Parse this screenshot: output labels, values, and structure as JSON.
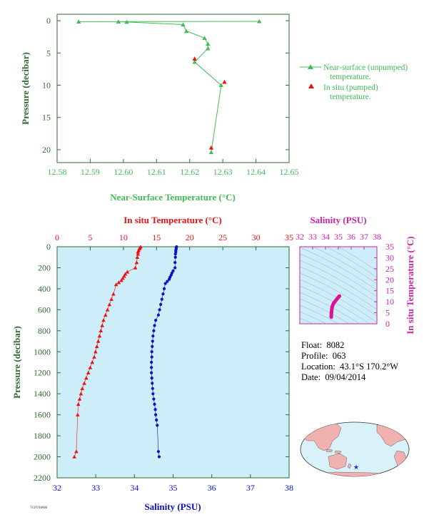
{
  "colors": {
    "green": "#44bb55",
    "axis_green": "#2f6a2f",
    "red": "#ee1111",
    "blue": "#0a10cc",
    "magenta": "#cc22aa",
    "panel_bg": "#cdeef8",
    "land": "#f2b1b1",
    "ocean": "#d9f1f9"
  },
  "info": {
    "float_label": "Float:",
    "float": "8082",
    "profile_label": "Profile:",
    "profile": "063",
    "location_label": "Location:",
    "location": "43.1°S  170.2°W",
    "date_label": "Date:",
    "date": "09/04/2014"
  },
  "tiny_code": "7419740A00",
  "chart_data": [
    {
      "type": "line",
      "xlabel": "Near-Surface Temperature (°C)",
      "ylabel": "Pressure (decibar)",
      "xlim": [
        12.58,
        12.65
      ],
      "ylim": [
        22,
        -1
      ],
      "xticks": [
        "12.58",
        "12.59",
        "12.60",
        "12.61",
        "12.62",
        "12.63",
        "12.64",
        "12.65"
      ],
      "yticks": [
        "0",
        "5",
        "10",
        "15",
        "20"
      ],
      "series": [
        {
          "name": "Near-surface (unpumped) temperature.",
          "marker": "triangle",
          "x": [
            12.641,
            12.5865,
            12.5985,
            12.601,
            12.618,
            12.619,
            12.6245,
            12.6255,
            12.6255,
            12.6215,
            12.6295,
            12.6265
          ],
          "y": [
            0.1,
            0.15,
            0.15,
            0.2,
            0.6,
            1.6,
            2.7,
            3.6,
            4.3,
            6.4,
            10.0,
            20.4
          ]
        },
        {
          "name": "In situ (pumped) temperature.",
          "marker": "triangle",
          "x": [
            12.6215,
            12.6305,
            12.6265
          ],
          "y": [
            5.9,
            9.5,
            19.7
          ]
        }
      ]
    },
    {
      "type": "scatter",
      "ylabel": "Pressure (decibar)",
      "ylim": [
        2200,
        0
      ],
      "yticks": [
        "0",
        "200",
        "400",
        "600",
        "800",
        "1000",
        "1200",
        "1400",
        "1600",
        "1800",
        "2000",
        "2200"
      ],
      "top_axis": {
        "label": "In situ Temperature (°C)",
        "lim": [
          0,
          35
        ],
        "ticks": [
          "0",
          "5",
          "10",
          "15",
          "20",
          "25",
          "30",
          "35"
        ]
      },
      "bottom_axis": {
        "label": "Salinity (PSU)",
        "lim": [
          32,
          38
        ],
        "ticks": [
          "32",
          "33",
          "34",
          "35",
          "36",
          "37",
          "38"
        ]
      },
      "series": [
        {
          "name": "In situ Temperature (°C)",
          "marker": "triangle",
          "axis": "top",
          "x": [
            12.6,
            12.5,
            12.4,
            12.3,
            12.2,
            12.2,
            12.1,
            12.0,
            11.8,
            10.6,
            10.3,
            10.1,
            9.9,
            9.7,
            9.3,
            8.9,
            8.5,
            8.2,
            7.9,
            7.6,
            7.3,
            7.0,
            6.8,
            6.6,
            6.4,
            6.2,
            6.0,
            5.8,
            5.6,
            5.3,
            5.0,
            4.7,
            4.4,
            4.1,
            3.8,
            3.6,
            3.4,
            3.2,
            3.1,
            2.9,
            2.6
          ],
          "y": [
            0,
            10,
            20,
            35,
            50,
            70,
            100,
            150,
            200,
            240,
            260,
            280,
            300,
            320,
            340,
            360,
            450,
            500,
            550,
            600,
            650,
            700,
            750,
            800,
            850,
            900,
            950,
            1000,
            1050,
            1100,
            1150,
            1200,
            1250,
            1300,
            1350,
            1400,
            1450,
            1500,
            1600,
            1950,
            2000
          ]
        },
        {
          "name": "Salinity (PSU)",
          "marker": "circle",
          "axis": "bottom",
          "x": [
            35.09,
            35.08,
            35.08,
            35.07,
            35.07,
            35.06,
            35.06,
            35.05,
            35.05,
            35.0,
            34.97,
            34.95,
            34.92,
            34.9,
            34.85,
            34.8,
            34.77,
            34.74,
            34.71,
            34.68,
            34.65,
            34.62,
            34.55,
            34.52,
            34.5,
            34.48,
            34.47,
            34.46,
            34.45,
            34.45,
            34.44,
            34.44,
            34.44,
            34.45,
            34.46,
            34.47,
            34.48,
            34.5,
            34.52,
            34.54,
            34.55,
            34.57,
            34.59,
            34.62,
            34.64
          ],
          "y": [
            0,
            10,
            20,
            35,
            50,
            70,
            100,
            150,
            200,
            230,
            250,
            270,
            290,
            310,
            330,
            350,
            400,
            450,
            500,
            550,
            600,
            650,
            700,
            750,
            800,
            850,
            900,
            950,
            1000,
            1050,
            1100,
            1150,
            1200,
            1250,
            1300,
            1350,
            1400,
            1450,
            1500,
            1550,
            1600,
            1650,
            1700,
            1950,
            2000
          ]
        }
      ]
    },
    {
      "type": "scatter",
      "xlabel": "Salinity (PSU)",
      "ylabel": "In situ Temperature (°C)",
      "xlim": [
        32,
        38
      ],
      "ylim": [
        0,
        35
      ],
      "xticks": [
        "32",
        "33",
        "34",
        "35",
        "36",
        "37",
        "38"
      ],
      "yticks": [
        "0",
        "5",
        "10",
        "15",
        "20",
        "25",
        "30",
        "35"
      ],
      "series": [
        {
          "name": "T-S",
          "x": [
            34.45,
            34.45,
            34.46,
            34.48,
            34.5,
            34.52,
            34.55,
            34.6,
            34.66,
            34.72,
            34.8,
            34.86,
            34.92,
            34.98,
            35.02,
            35.06,
            35.09
          ],
          "y": [
            3.0,
            4.0,
            5.0,
            6.0,
            7.0,
            7.6,
            8.2,
            8.9,
            9.5,
            10.0,
            10.6,
            11.0,
            11.5,
            11.9,
            12.2,
            12.4,
            12.6
          ]
        }
      ]
    }
  ]
}
